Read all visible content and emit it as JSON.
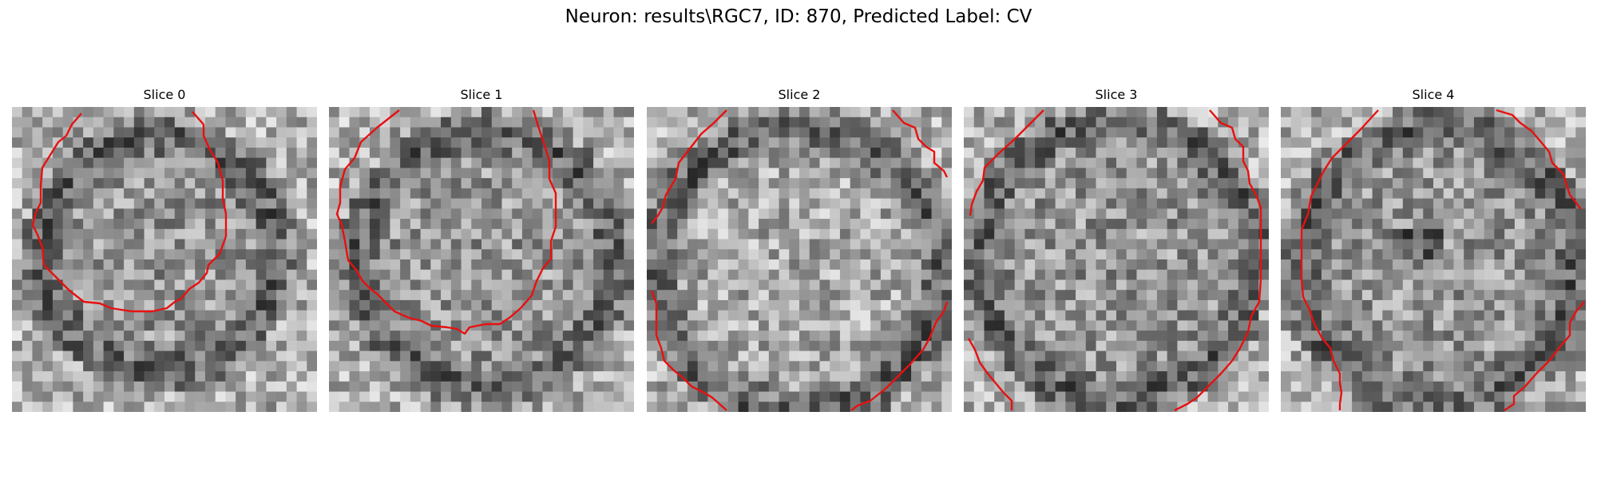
{
  "figure": {
    "title": "Neuron: results\\RGC7, ID: 870, Predicted Label: CV",
    "contour_color": "#e81010"
  },
  "slices": [
    {
      "title": "Slice 0"
    },
    {
      "title": "Slice 1"
    },
    {
      "title": "Slice 2"
    },
    {
      "title": "Slice 3"
    },
    {
      "title": "Slice 4"
    }
  ]
}
